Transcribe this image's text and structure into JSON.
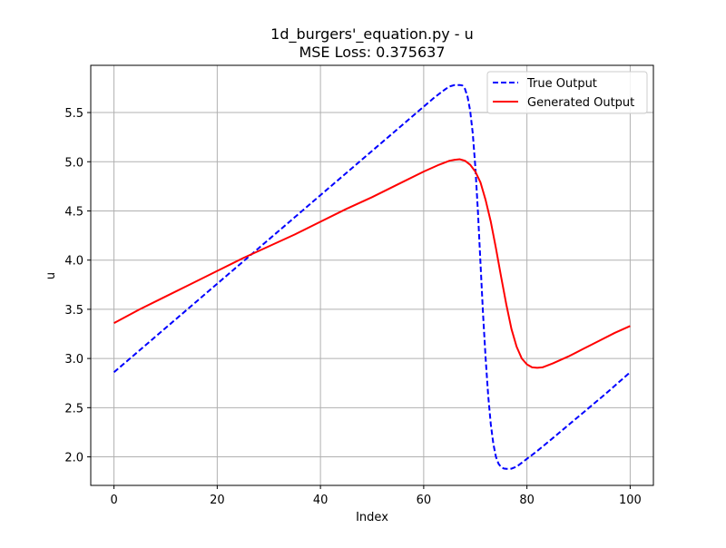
{
  "chart_data": {
    "type": "line",
    "title": "1d_burgers'_equation.py - u",
    "subtitle": "MSE Loss: 0.375637",
    "xlabel": "Index",
    "ylabel": "u",
    "xlim": [
      -4.5,
      104.5
    ],
    "ylim": [
      1.71,
      5.98
    ],
    "xticks": [
      0,
      20,
      40,
      60,
      80,
      100
    ],
    "yticks": [
      2.0,
      2.5,
      3.0,
      3.5,
      4.0,
      4.5,
      5.0,
      5.5
    ],
    "xtick_labels": [
      "0",
      "20",
      "40",
      "60",
      "80",
      "100"
    ],
    "ytick_labels": [
      "2.0",
      "2.5",
      "3.0",
      "3.5",
      "4.0",
      "4.5",
      "5.0",
      "5.5"
    ],
    "grid": true,
    "legend_position": "upper right",
    "series": [
      {
        "name": "True Output",
        "color": "#0000ff",
        "style": "dashed",
        "x": [
          0,
          5,
          10,
          15,
          20,
          25,
          30,
          35,
          40,
          45,
          50,
          55,
          60,
          62,
          64,
          65,
          66,
          67,
          67.5,
          68,
          68.5,
          69,
          69.5,
          70,
          70.5,
          71,
          71.5,
          72,
          72.5,
          73,
          73.5,
          74,
          74.5,
          75,
          75.5,
          76,
          76.5,
          77,
          77.5,
          78,
          79,
          80,
          82,
          85,
          90,
          95,
          100
        ],
        "y": [
          2.86,
          3.085,
          3.31,
          3.535,
          3.76,
          3.985,
          4.21,
          4.435,
          4.66,
          4.885,
          5.11,
          5.335,
          5.56,
          5.65,
          5.73,
          5.765,
          5.78,
          5.78,
          5.775,
          5.74,
          5.66,
          5.52,
          5.29,
          4.95,
          4.5,
          3.97,
          3.45,
          3.0,
          2.62,
          2.33,
          2.13,
          2.0,
          1.93,
          1.895,
          1.882,
          1.878,
          1.878,
          1.88,
          1.89,
          1.9,
          1.94,
          1.98,
          2.06,
          2.19,
          2.41,
          2.63,
          2.86
        ]
      },
      {
        "name": "Generated Output",
        "color": "#ff0000",
        "style": "solid",
        "x": [
          0,
          5,
          10,
          15,
          20,
          25,
          30,
          35,
          40,
          45,
          50,
          55,
          60,
          63,
          65,
          66,
          67,
          68,
          69,
          70,
          71,
          72,
          73,
          74,
          75,
          76,
          77,
          78,
          79,
          80,
          81,
          82,
          83,
          85,
          88,
          91,
          94,
          97,
          100
        ],
        "y": [
          3.36,
          3.5,
          3.63,
          3.76,
          3.89,
          4.02,
          4.14,
          4.26,
          4.39,
          4.52,
          4.64,
          4.77,
          4.9,
          4.97,
          5.01,
          5.02,
          5.025,
          5.01,
          4.97,
          4.9,
          4.79,
          4.61,
          4.39,
          4.12,
          3.83,
          3.55,
          3.3,
          3.12,
          3.0,
          2.94,
          2.91,
          2.905,
          2.91,
          2.95,
          3.02,
          3.1,
          3.18,
          3.26,
          3.33
        ]
      }
    ]
  }
}
